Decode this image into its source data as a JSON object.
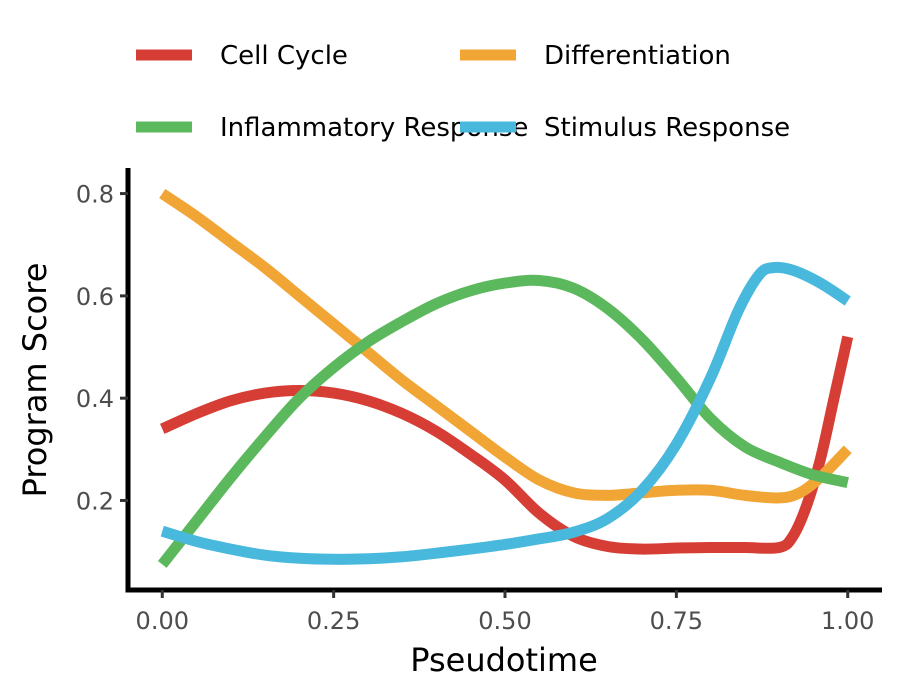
{
  "chart_data": {
    "type": "line",
    "xlabel": "Pseudotime",
    "ylabel": "Program Score",
    "xlim": [
      -0.05,
      1.05
    ],
    "ylim": [
      0.025,
      0.85
    ],
    "x_ticks": [
      0.0,
      0.25,
      0.5,
      0.75,
      1.0
    ],
    "x_tick_labels": [
      "0.00",
      "0.25",
      "0.50",
      "0.75",
      "1.00"
    ],
    "y_ticks": [
      0.2,
      0.4,
      0.6,
      0.8
    ],
    "y_tick_labels": [
      "0.2",
      "0.4",
      "0.6",
      "0.8"
    ],
    "grid": false,
    "legend_position": "top",
    "series": [
      {
        "name": "Cell Cycle",
        "color": "#D63D35",
        "x": [
          0.0,
          0.05,
          0.1,
          0.15,
          0.2,
          0.25,
          0.3,
          0.35,
          0.4,
          0.45,
          0.5,
          0.55,
          0.6,
          0.65,
          0.7,
          0.75,
          0.8,
          0.85,
          0.9,
          0.92,
          0.94,
          0.96,
          0.98,
          1.0
        ],
        "y": [
          0.34,
          0.37,
          0.395,
          0.41,
          0.415,
          0.41,
          0.395,
          0.37,
          0.335,
          0.29,
          0.24,
          0.175,
          0.13,
          0.11,
          0.105,
          0.107,
          0.108,
          0.108,
          0.108,
          0.13,
          0.19,
          0.28,
          0.4,
          0.52
        ]
      },
      {
        "name": "Differentiation",
        "color": "#F0A535",
        "x": [
          0.0,
          0.05,
          0.1,
          0.15,
          0.2,
          0.25,
          0.3,
          0.35,
          0.4,
          0.45,
          0.5,
          0.55,
          0.6,
          0.65,
          0.7,
          0.75,
          0.8,
          0.85,
          0.9,
          0.93,
          0.96,
          1.0
        ],
        "y": [
          0.8,
          0.755,
          0.705,
          0.655,
          0.6,
          0.545,
          0.49,
          0.435,
          0.385,
          0.335,
          0.285,
          0.24,
          0.215,
          0.21,
          0.215,
          0.22,
          0.22,
          0.21,
          0.205,
          0.215,
          0.245,
          0.3
        ]
      },
      {
        "name": "Inflammatory Response",
        "color": "#5CB85C",
        "x": [
          0.0,
          0.05,
          0.1,
          0.15,
          0.2,
          0.25,
          0.3,
          0.35,
          0.4,
          0.45,
          0.5,
          0.55,
          0.6,
          0.65,
          0.7,
          0.75,
          0.8,
          0.85,
          0.9,
          0.95,
          1.0
        ],
        "y": [
          0.075,
          0.16,
          0.245,
          0.325,
          0.4,
          0.46,
          0.51,
          0.55,
          0.585,
          0.61,
          0.625,
          0.63,
          0.615,
          0.575,
          0.515,
          0.44,
          0.36,
          0.305,
          0.275,
          0.25,
          0.235
        ]
      },
      {
        "name": "Stimulus Response",
        "color": "#48B8DC",
        "x": [
          0.0,
          0.05,
          0.1,
          0.15,
          0.2,
          0.25,
          0.3,
          0.35,
          0.4,
          0.45,
          0.5,
          0.55,
          0.6,
          0.65,
          0.7,
          0.75,
          0.8,
          0.84,
          0.87,
          0.89,
          0.92,
          0.96,
          1.0
        ],
        "y": [
          0.14,
          0.12,
          0.105,
          0.093,
          0.087,
          0.085,
          0.086,
          0.09,
          0.097,
          0.105,
          0.114,
          0.125,
          0.138,
          0.165,
          0.22,
          0.31,
          0.44,
          0.57,
          0.64,
          0.655,
          0.65,
          0.625,
          0.59
        ]
      }
    ]
  }
}
